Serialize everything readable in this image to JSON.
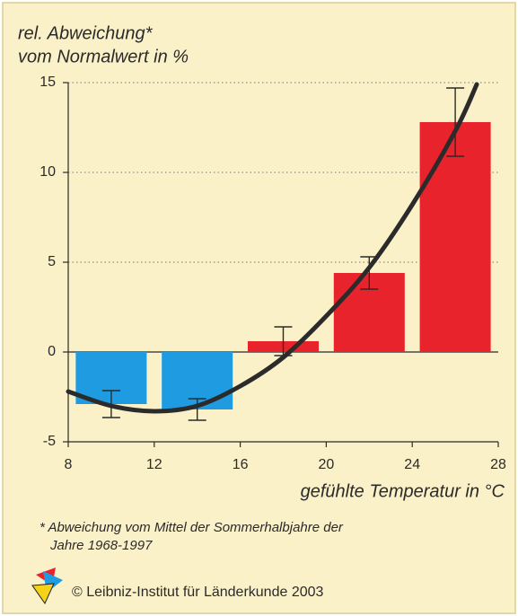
{
  "chart_data": {
    "type": "bar",
    "ylabel_lines": [
      "rel. Abweichung*",
      "vom Normalwert in %"
    ],
    "xlabel": "gefühlte Temperatur in °C",
    "x": [
      10,
      14,
      18,
      22,
      26
    ],
    "values": [
      -2.9,
      -3.2,
      0.6,
      4.4,
      12.8
    ],
    "errors": [
      0.75,
      0.6,
      0.8,
      0.9,
      1.9
    ],
    "colors": [
      "#1f9be2",
      "#1f9be2",
      "#e8232b",
      "#e8232b",
      "#e8232b"
    ],
    "curve": {
      "x": [
        8,
        10,
        12,
        14,
        16,
        18,
        20,
        22,
        24,
        26,
        27
      ],
      "y": [
        -2.2,
        -3.0,
        -3.3,
        -3.0,
        -1.9,
        -0.3,
        2.0,
        4.7,
        8.2,
        12.3,
        14.9
      ],
      "color": "#2b2b2b"
    },
    "xlim": [
      8,
      28
    ],
    "xticks": [
      8,
      12,
      16,
      20,
      24,
      28
    ],
    "ylim": [
      -5,
      15
    ],
    "yticks": [
      -5,
      0,
      5,
      10,
      15
    ],
    "grid": true,
    "footnote_lines": [
      "* Abweichung vom Mittel der Sommerhalbjahre der",
      "Jahre 1968-1997"
    ],
    "copyright": "© Leibniz-Institut für Länderkunde 2003"
  }
}
